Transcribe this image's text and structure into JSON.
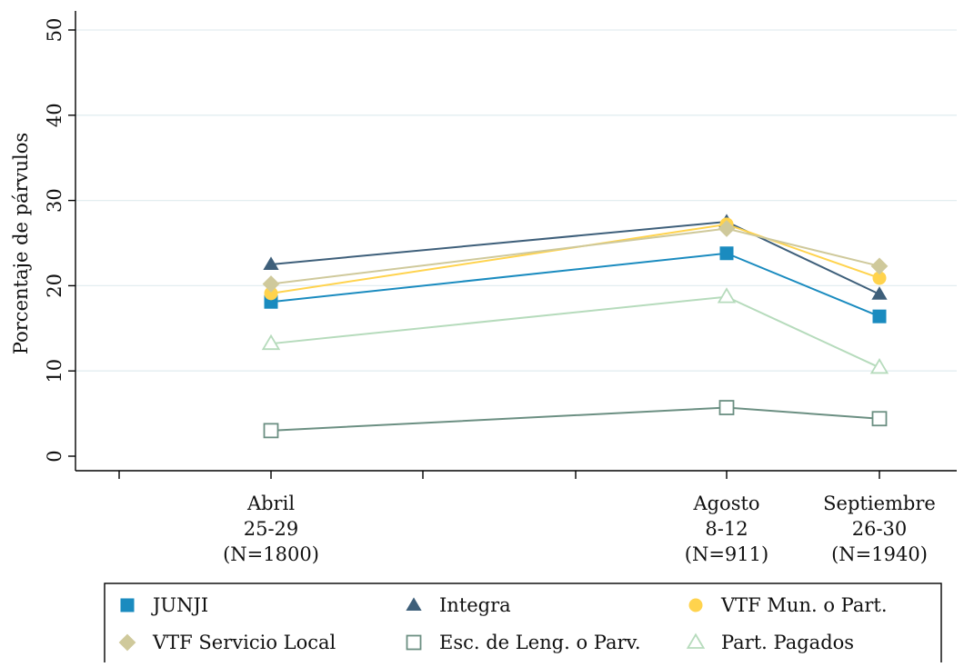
{
  "chart_data": {
    "type": "line",
    "ylabel": "Porcentaje de párvulos",
    "xlabel": "",
    "ylim": [
      0,
      50
    ],
    "yticks": [
      0,
      10,
      20,
      30,
      40,
      50
    ],
    "grid": true,
    "legend_position": "bottom",
    "categories": [
      {
        "lines": [
          "Abril",
          "25-29",
          "(N=1800)"
        ]
      },
      {
        "lines": [
          "Agosto",
          "8-12",
          "(N=911)"
        ]
      },
      {
        "lines": [
          "Septiembre",
          "26-30",
          "(N=1940)"
        ]
      }
    ],
    "series": [
      {
        "name": "JUNJI",
        "marker": "square",
        "color": "#1a8bbf",
        "values": [
          18.1,
          23.8,
          16.4
        ]
      },
      {
        "name": "Integra",
        "marker": "triangle",
        "color": "#3e5f7a",
        "values": [
          22.5,
          27.5,
          19.0
        ]
      },
      {
        "name": "VTF Mun. o Part.",
        "marker": "circle",
        "color": "#ffd34d",
        "values": [
          19.1,
          27.2,
          20.9
        ]
      },
      {
        "name": "VTF Servicio Local",
        "marker": "diamond",
        "color": "#cfc99b",
        "values": [
          20.2,
          26.7,
          22.3
        ]
      },
      {
        "name": "Esc. de Leng. o Parv.",
        "marker": "square-hollow",
        "color": "#6b8f82",
        "values": [
          3.0,
          5.7,
          4.4
        ]
      },
      {
        "name": "Part. Pagados",
        "marker": "triangle-hollow",
        "color": "#b6dbbc",
        "values": [
          13.2,
          18.7,
          10.4
        ]
      }
    ]
  }
}
